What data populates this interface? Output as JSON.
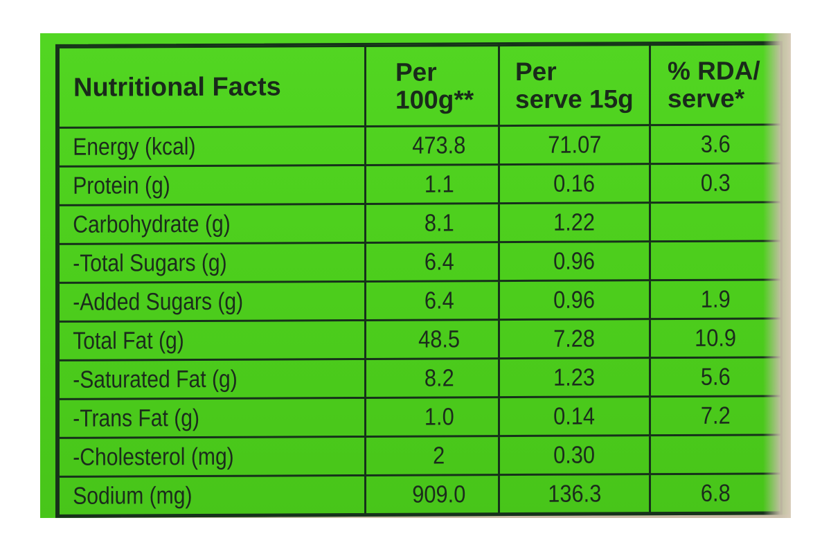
{
  "table": {
    "headers": [
      "Nutritional Facts",
      "Per\n100g**",
      "Per\nserve 15g",
      "% RDA/\nserve*"
    ],
    "rows": [
      [
        "Energy (kcal)",
        "473.8",
        "71.07",
        "3.6"
      ],
      [
        "Protein (g)",
        "1.1",
        "0.16",
        "0.3"
      ],
      [
        "Carbohydrate (g)",
        "8.1",
        "1.22",
        ""
      ],
      [
        "-Total Sugars (g)",
        "6.4",
        "0.96",
        ""
      ],
      [
        "-Added Sugars (g)",
        "6.4",
        "0.96",
        "1.9"
      ],
      [
        "Total Fat (g)",
        "48.5",
        "7.28",
        "10.9"
      ],
      [
        "-Saturated Fat (g)",
        "8.2",
        "1.23",
        "5.6"
      ],
      [
        "-Trans Fat (g)",
        "1.0",
        "0.14",
        "7.2"
      ],
      [
        "-Cholesterol (mg)",
        "2",
        "0.30",
        ""
      ],
      [
        "Sodium (mg)",
        "909.0",
        "136.3",
        "6.8"
      ]
    ]
  },
  "colors": {
    "label_green": "#4fd01f",
    "ink": "#16311a",
    "packet": "#c9bba6"
  }
}
